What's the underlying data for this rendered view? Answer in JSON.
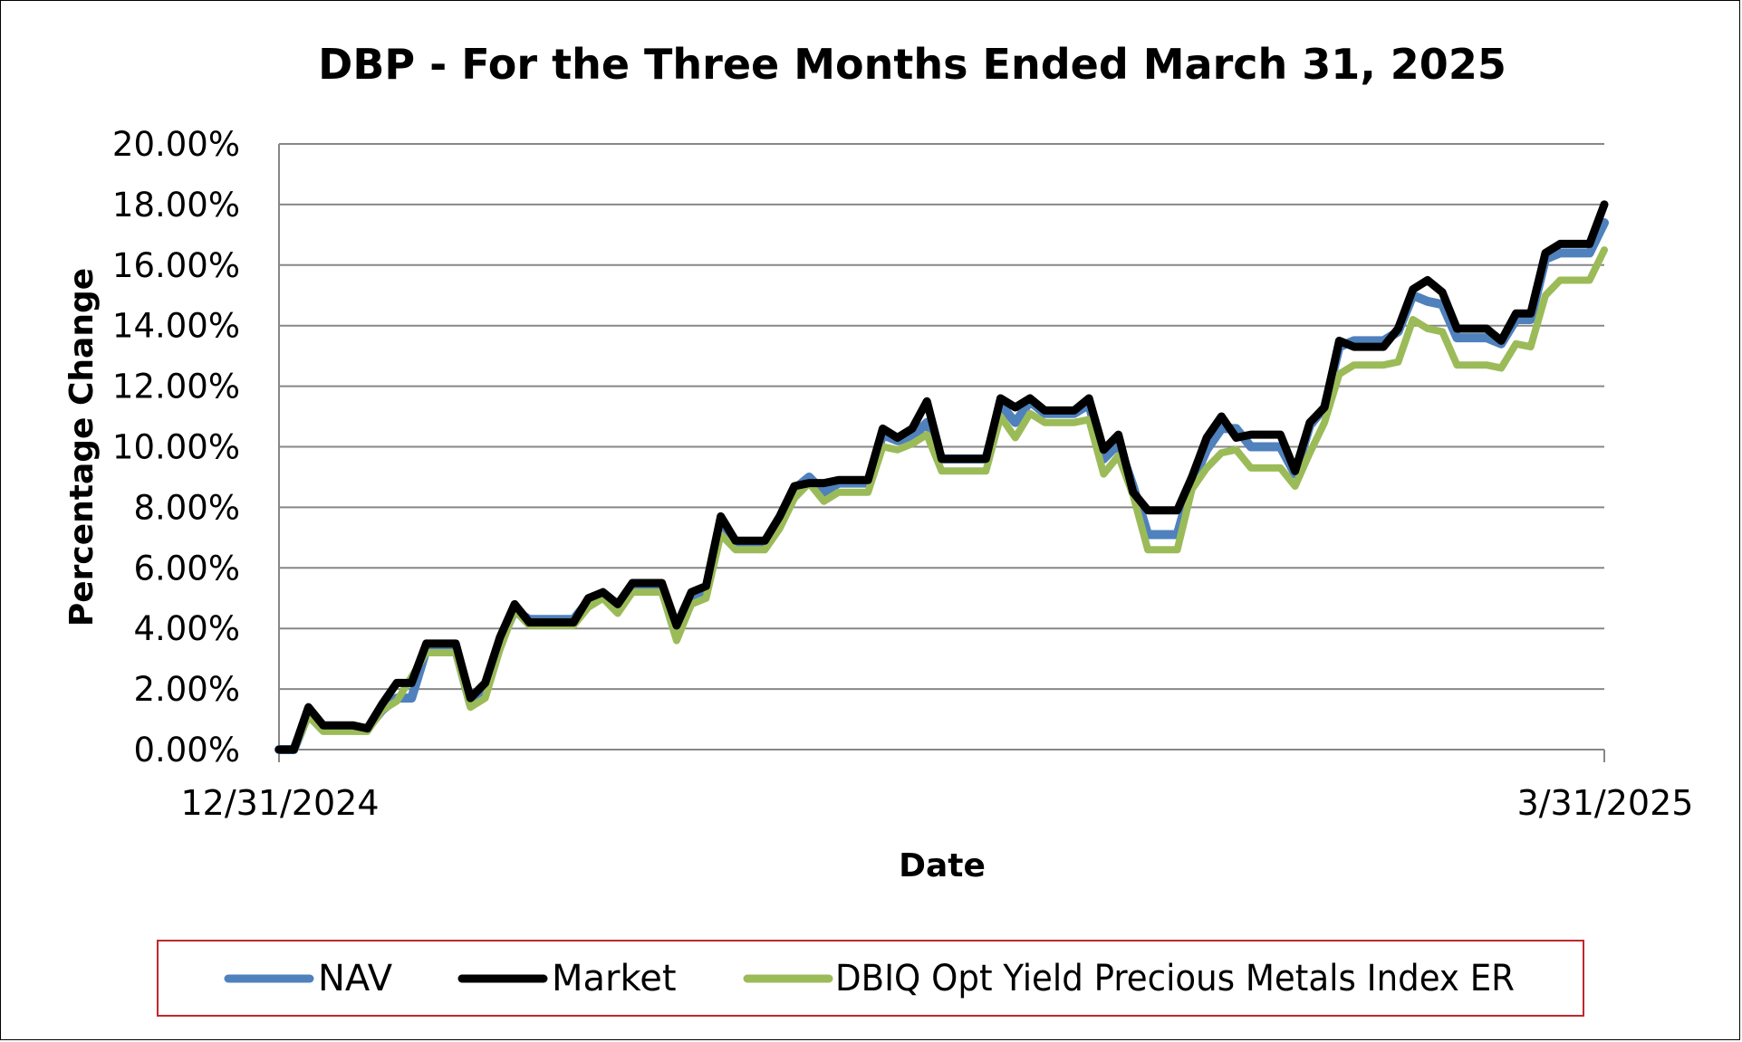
{
  "chart_data": {
    "type": "line",
    "title": "DBP - For the Three Months Ended March 31, 2025",
    "xlabel": "Date",
    "ylabel": "Percentage Change",
    "x_tick_labels": [
      "12/31/2024",
      "3/31/2025"
    ],
    "y_tick_labels": [
      "0.00%",
      "2.00%",
      "4.00%",
      "6.00%",
      "8.00%",
      "10.00%",
      "12.00%",
      "14.00%",
      "16.00%",
      "18.00%",
      "20.00%"
    ],
    "ylim": [
      0,
      20
    ],
    "grid": "horizontal",
    "legend_position": "bottom",
    "series": [
      {
        "name": "NAV",
        "color": "#4F81BD",
        "values": [
          0,
          0,
          1.2,
          0.7,
          0.7,
          0.7,
          0.7,
          1.3,
          1.7,
          1.7,
          3.3,
          3.3,
          3.3,
          1.5,
          1.9,
          3.5,
          4.6,
          4.3,
          4.3,
          4.3,
          4.3,
          4.9,
          5.1,
          4.6,
          5.3,
          5.3,
          5.3,
          3.8,
          5.0,
          5.2,
          7.4,
          6.8,
          6.8,
          6.8,
          7.6,
          8.6,
          9.0,
          8.5,
          8.8,
          8.8,
          8.8,
          10.4,
          10.2,
          10.3,
          10.8,
          9.6,
          9.6,
          9.6,
          9.6,
          11.4,
          10.8,
          11.5,
          11.1,
          11.1,
          11.1,
          11.4,
          9.6,
          10.1,
          8.7,
          7.1,
          7.1,
          7.1,
          8.8,
          9.9,
          10.6,
          10.6,
          10.0,
          10.0,
          10.0,
          9.1,
          10.7,
          11.3,
          13.3,
          13.5,
          13.5,
          13.5,
          13.8,
          15.0,
          14.8,
          14.7,
          13.6,
          13.6,
          13.6,
          13.4,
          14.2,
          14.2,
          16.2,
          16.4,
          16.4,
          16.4,
          17.4
        ]
      },
      {
        "name": "Market",
        "color": "#000000",
        "values": [
          0,
          0,
          1.4,
          0.8,
          0.8,
          0.8,
          0.7,
          1.5,
          2.2,
          2.2,
          3.5,
          3.5,
          3.5,
          1.7,
          2.2,
          3.7,
          4.8,
          4.2,
          4.2,
          4.2,
          4.2,
          5.0,
          5.2,
          4.8,
          5.5,
          5.5,
          5.5,
          4.1,
          5.2,
          5.4,
          7.7,
          6.9,
          6.9,
          6.9,
          7.7,
          8.7,
          8.8,
          8.8,
          8.9,
          8.9,
          8.9,
          10.6,
          10.3,
          10.6,
          11.5,
          9.6,
          9.6,
          9.6,
          9.6,
          11.6,
          11.3,
          11.6,
          11.2,
          11.2,
          11.2,
          11.6,
          9.9,
          10.4,
          8.5,
          7.9,
          7.9,
          7.9,
          9.0,
          10.3,
          11.0,
          10.3,
          10.4,
          10.4,
          10.4,
          9.2,
          10.8,
          11.3,
          13.5,
          13.3,
          13.3,
          13.3,
          13.9,
          15.2,
          15.5,
          15.1,
          13.9,
          13.9,
          13.9,
          13.5,
          14.4,
          14.4,
          16.4,
          16.7,
          16.7,
          16.7,
          18.0
        ]
      },
      {
        "name": "DBIQ Opt Yield Precious Metals Index ER",
        "color": "#9BBB59",
        "values": [
          0,
          0,
          1.1,
          0.6,
          0.6,
          0.6,
          0.6,
          1.3,
          1.6,
          2.4,
          3.2,
          3.2,
          3.2,
          1.4,
          1.7,
          3.3,
          4.6,
          4.1,
          4.1,
          4.1,
          4.1,
          4.7,
          5.0,
          4.5,
          5.2,
          5.2,
          5.2,
          3.6,
          4.8,
          5.0,
          7.1,
          6.6,
          6.6,
          6.6,
          7.3,
          8.3,
          8.8,
          8.2,
          8.5,
          8.5,
          8.5,
          10.0,
          9.9,
          10.1,
          10.4,
          9.2,
          9.2,
          9.2,
          9.2,
          11.0,
          10.3,
          11.1,
          10.8,
          10.8,
          10.8,
          10.9,
          9.1,
          9.7,
          8.4,
          6.6,
          6.6,
          6.6,
          8.6,
          9.3,
          9.8,
          9.9,
          9.3,
          9.3,
          9.3,
          8.7,
          9.8,
          10.8,
          12.4,
          12.7,
          12.7,
          12.7,
          12.8,
          14.2,
          13.9,
          13.8,
          12.7,
          12.7,
          12.7,
          12.6,
          13.4,
          13.3,
          15.0,
          15.5,
          15.5,
          15.5,
          16.5
        ]
      }
    ]
  }
}
